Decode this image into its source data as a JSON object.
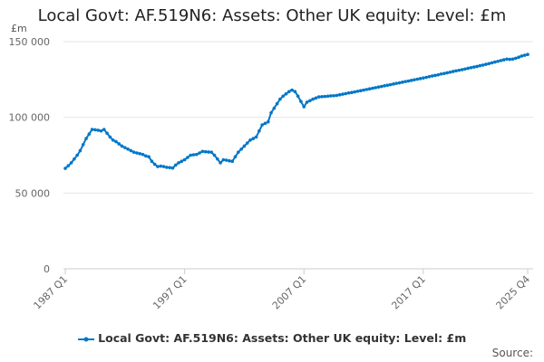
{
  "chart_data": {
    "type": "line",
    "title": "Local Govt: AF.519N6: Assets: Other UK equity: Level: £m",
    "ylabel": "£m",
    "xlabel": "",
    "x_start": "1987 Q1",
    "x_end": "2025 Q4",
    "frequency": "quarterly",
    "x_tick_labels": [
      "1987 Q1",
      "1997 Q1",
      "2007 Q1",
      "2017 Q1",
      "2025 Q4"
    ],
    "y_ticks": [
      0,
      50000,
      100000,
      150000
    ],
    "y_tick_labels": [
      "0",
      "50 000",
      "100 000",
      "150 000"
    ],
    "ylim": [
      0,
      150000
    ],
    "grid": "horizontal",
    "legend_position": "bottom",
    "color": "#0077c8",
    "series": [
      {
        "name": "Local Govt: AF.519N6: Assets: Other UK equity: Level: £m",
        "values": [
          66300,
          68000,
          70000,
          72500,
          75000,
          78000,
          82000,
          86000,
          89000,
          92000,
          91800,
          91500,
          91000,
          92000,
          89500,
          87000,
          85000,
          84000,
          82500,
          81000,
          80000,
          79000,
          78000,
          77000,
          76500,
          76000,
          75500,
          74500,
          74000,
          71000,
          69000,
          67500,
          67800,
          67500,
          67000,
          66800,
          66500,
          68500,
          70000,
          71000,
          72000,
          73500,
          75000,
          75300,
          75500,
          76500,
          77500,
          77300,
          77100,
          77000,
          75000,
          72500,
          70000,
          72000,
          71700,
          71300,
          71000,
          74000,
          77000,
          79000,
          81000,
          83000,
          85000,
          86000,
          87000,
          91000,
          95000,
          96000,
          97000,
          103000,
          106000,
          109000,
          112000,
          114000,
          115500,
          117000,
          118000,
          117000,
          114000,
          110500,
          107000,
          110000,
          111000,
          112000,
          112800,
          113500,
          113700,
          113800,
          114000,
          114200,
          114300,
          114500,
          114900,
          115300,
          115700,
          116100,
          116400,
          116800,
          117200,
          117600,
          118000,
          118400,
          118800,
          119200,
          119600,
          120000,
          120400,
          120800,
          121200,
          121600,
          122000,
          122400,
          122800,
          123200,
          123600,
          124000,
          124400,
          124800,
          125200,
          125600,
          126000,
          126400,
          126900,
          127300,
          127700,
          128100,
          128600,
          129000,
          129400,
          129800,
          130300,
          130700,
          131100,
          131500,
          131900,
          132400,
          132800,
          133200,
          133600,
          134100,
          134500,
          135000,
          135500,
          136000,
          136500,
          137000,
          137500,
          138000,
          138500,
          138300,
          138500,
          139000,
          139700,
          140500,
          141000,
          141500
        ]
      }
    ]
  },
  "footer": {
    "source": "Source:"
  }
}
